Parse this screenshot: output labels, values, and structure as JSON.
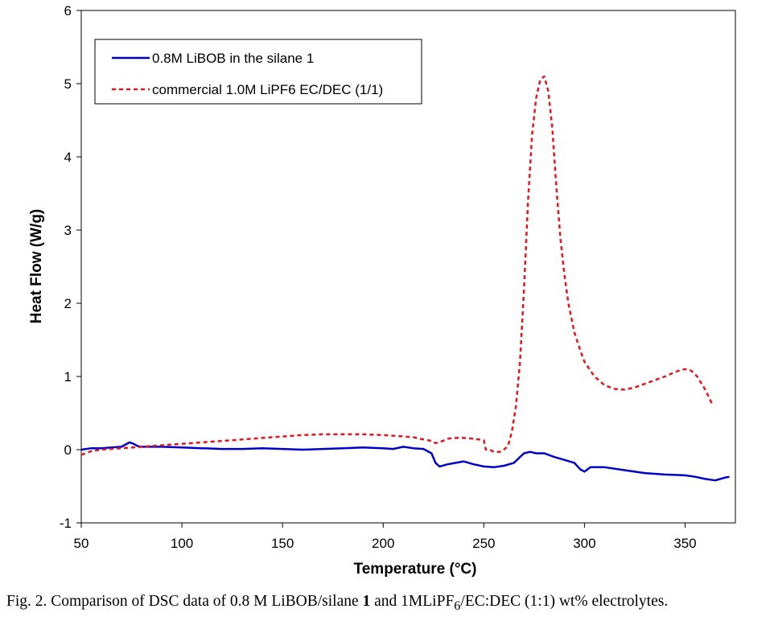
{
  "chart_data": {
    "type": "line",
    "xlabel": "Temperature (°C)",
    "ylabel": "Heat Flow (W/g)",
    "xlim": [
      50,
      375
    ],
    "ylim": [
      -1,
      6
    ],
    "xticks": [
      50,
      100,
      150,
      200,
      250,
      300,
      350
    ],
    "yticks": [
      -1,
      0,
      1,
      2,
      3,
      4,
      5,
      6
    ],
    "grid": false,
    "legend_position": "top-left",
    "series": [
      {
        "name": "0.8M LiBOB in the silane 1",
        "color": "#0000cc",
        "style": "solid",
        "points": [
          [
            50,
            0.0
          ],
          [
            55,
            0.02
          ],
          [
            60,
            0.02
          ],
          [
            65,
            0.03
          ],
          [
            70,
            0.04
          ],
          [
            72,
            0.07
          ],
          [
            74,
            0.1
          ],
          [
            76,
            0.08
          ],
          [
            78,
            0.05
          ],
          [
            80,
            0.04
          ],
          [
            90,
            0.04
          ],
          [
            100,
            0.03
          ],
          [
            110,
            0.02
          ],
          [
            120,
            0.01
          ],
          [
            130,
            0.01
          ],
          [
            140,
            0.02
          ],
          [
            150,
            0.01
          ],
          [
            160,
            0.0
          ],
          [
            170,
            0.01
          ],
          [
            180,
            0.02
          ],
          [
            190,
            0.03
          ],
          [
            200,
            0.02
          ],
          [
            205,
            0.01
          ],
          [
            210,
            0.04
          ],
          [
            215,
            0.02
          ],
          [
            220,
            0.01
          ],
          [
            224,
            -0.05
          ],
          [
            226,
            -0.18
          ],
          [
            228,
            -0.23
          ],
          [
            232,
            -0.2
          ],
          [
            236,
            -0.18
          ],
          [
            240,
            -0.16
          ],
          [
            245,
            -0.2
          ],
          [
            250,
            -0.23
          ],
          [
            255,
            -0.24
          ],
          [
            260,
            -0.22
          ],
          [
            265,
            -0.18
          ],
          [
            268,
            -0.1
          ],
          [
            270,
            -0.05
          ],
          [
            273,
            -0.03
          ],
          [
            276,
            -0.05
          ],
          [
            280,
            -0.05
          ],
          [
            285,
            -0.1
          ],
          [
            290,
            -0.14
          ],
          [
            295,
            -0.18
          ],
          [
            298,
            -0.27
          ],
          [
            300,
            -0.3
          ],
          [
            303,
            -0.24
          ],
          [
            310,
            -0.24
          ],
          [
            320,
            -0.28
          ],
          [
            330,
            -0.32
          ],
          [
            340,
            -0.34
          ],
          [
            350,
            -0.35
          ],
          [
            355,
            -0.37
          ],
          [
            360,
            -0.4
          ],
          [
            365,
            -0.42
          ],
          [
            370,
            -0.38
          ],
          [
            372,
            -0.37
          ]
        ]
      },
      {
        "name": "commercial 1.0M LiPF6 EC/DEC (1/1)",
        "color": "#e8141c",
        "style": "dashed",
        "points": [
          [
            50,
            -0.07
          ],
          [
            55,
            -0.02
          ],
          [
            60,
            0.0
          ],
          [
            70,
            0.02
          ],
          [
            80,
            0.04
          ],
          [
            90,
            0.06
          ],
          [
            100,
            0.08
          ],
          [
            110,
            0.1
          ],
          [
            120,
            0.12
          ],
          [
            130,
            0.14
          ],
          [
            140,
            0.16
          ],
          [
            150,
            0.18
          ],
          [
            160,
            0.2
          ],
          [
            170,
            0.21
          ],
          [
            180,
            0.21
          ],
          [
            190,
            0.21
          ],
          [
            200,
            0.2
          ],
          [
            210,
            0.18
          ],
          [
            215,
            0.17
          ],
          [
            220,
            0.14
          ],
          [
            224,
            0.12
          ],
          [
            226,
            0.09
          ],
          [
            228,
            0.1
          ],
          [
            232,
            0.15
          ],
          [
            236,
            0.16
          ],
          [
            240,
            0.16
          ],
          [
            245,
            0.15
          ],
          [
            250,
            0.13
          ],
          [
            251,
            0.0
          ],
          [
            253,
            0.0
          ],
          [
            255,
            -0.03
          ],
          [
            258,
            -0.03
          ],
          [
            260,
            0.0
          ],
          [
            262,
            0.05
          ],
          [
            264,
            0.25
          ],
          [
            266,
            0.6
          ],
          [
            268,
            1.2
          ],
          [
            270,
            2.2
          ],
          [
            272,
            3.4
          ],
          [
            274,
            4.3
          ],
          [
            276,
            4.8
          ],
          [
            278,
            5.05
          ],
          [
            280,
            5.1
          ],
          [
            282,
            4.9
          ],
          [
            284,
            4.4
          ],
          [
            286,
            3.6
          ],
          [
            288,
            2.9
          ],
          [
            290,
            2.4
          ],
          [
            292,
            2.0
          ],
          [
            295,
            1.6
          ],
          [
            298,
            1.35
          ],
          [
            300,
            1.2
          ],
          [
            305,
            1.0
          ],
          [
            310,
            0.88
          ],
          [
            315,
            0.83
          ],
          [
            320,
            0.82
          ],
          [
            325,
            0.85
          ],
          [
            330,
            0.9
          ],
          [
            335,
            0.95
          ],
          [
            340,
            1.0
          ],
          [
            345,
            1.06
          ],
          [
            348,
            1.09
          ],
          [
            350,
            1.1
          ],
          [
            353,
            1.08
          ],
          [
            356,
            1.0
          ],
          [
            360,
            0.82
          ],
          [
            363,
            0.65
          ],
          [
            364,
            0.6
          ]
        ]
      }
    ]
  },
  "caption": {
    "prefix": "Fig. 2.  Comparison of DSC data of 0.8 M LiBOB/silane ",
    "bold_number": "1",
    "middle": " and 1MLiPF",
    "subscript": "6",
    "suffix": "/EC:DEC (1:1) wt% electrolytes."
  }
}
